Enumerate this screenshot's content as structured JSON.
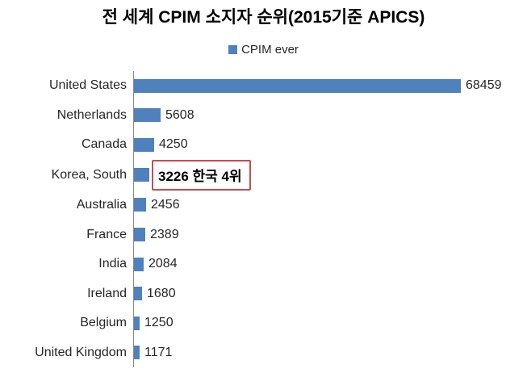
{
  "colors": {
    "bar": "#4F81BD",
    "axis_line": "#8A8A8A",
    "highlight_box_border": "#C0504D",
    "text": "#262626",
    "background": "#FFFFFF"
  },
  "chart_data": {
    "type": "bar",
    "orientation": "horizontal",
    "title": "전 세계 CPIM 소지자 순위(2015기준 APICS)",
    "legend": [
      "CPIM ever"
    ],
    "legend_position": "top-center",
    "categories": [
      "United States",
      "Netherlands",
      "Canada",
      "Korea, South",
      "Australia",
      "France",
      "India",
      "Ireland",
      "Belgium",
      "United Kingdom"
    ],
    "values": [
      68459,
      5608,
      4250,
      3226,
      2456,
      2389,
      2084,
      1680,
      1250,
      1171
    ],
    "value_labels": [
      "68459",
      "5608",
      "4250",
      "3226 한국 4위",
      "2456",
      "2389",
      "2084",
      "1680",
      "1250",
      "1171"
    ],
    "highlight_index": 3,
    "highlight_note": "한국 4위",
    "xlim": [
      0,
      68459
    ],
    "grid": false,
    "bar_color": "#4F81BD"
  }
}
